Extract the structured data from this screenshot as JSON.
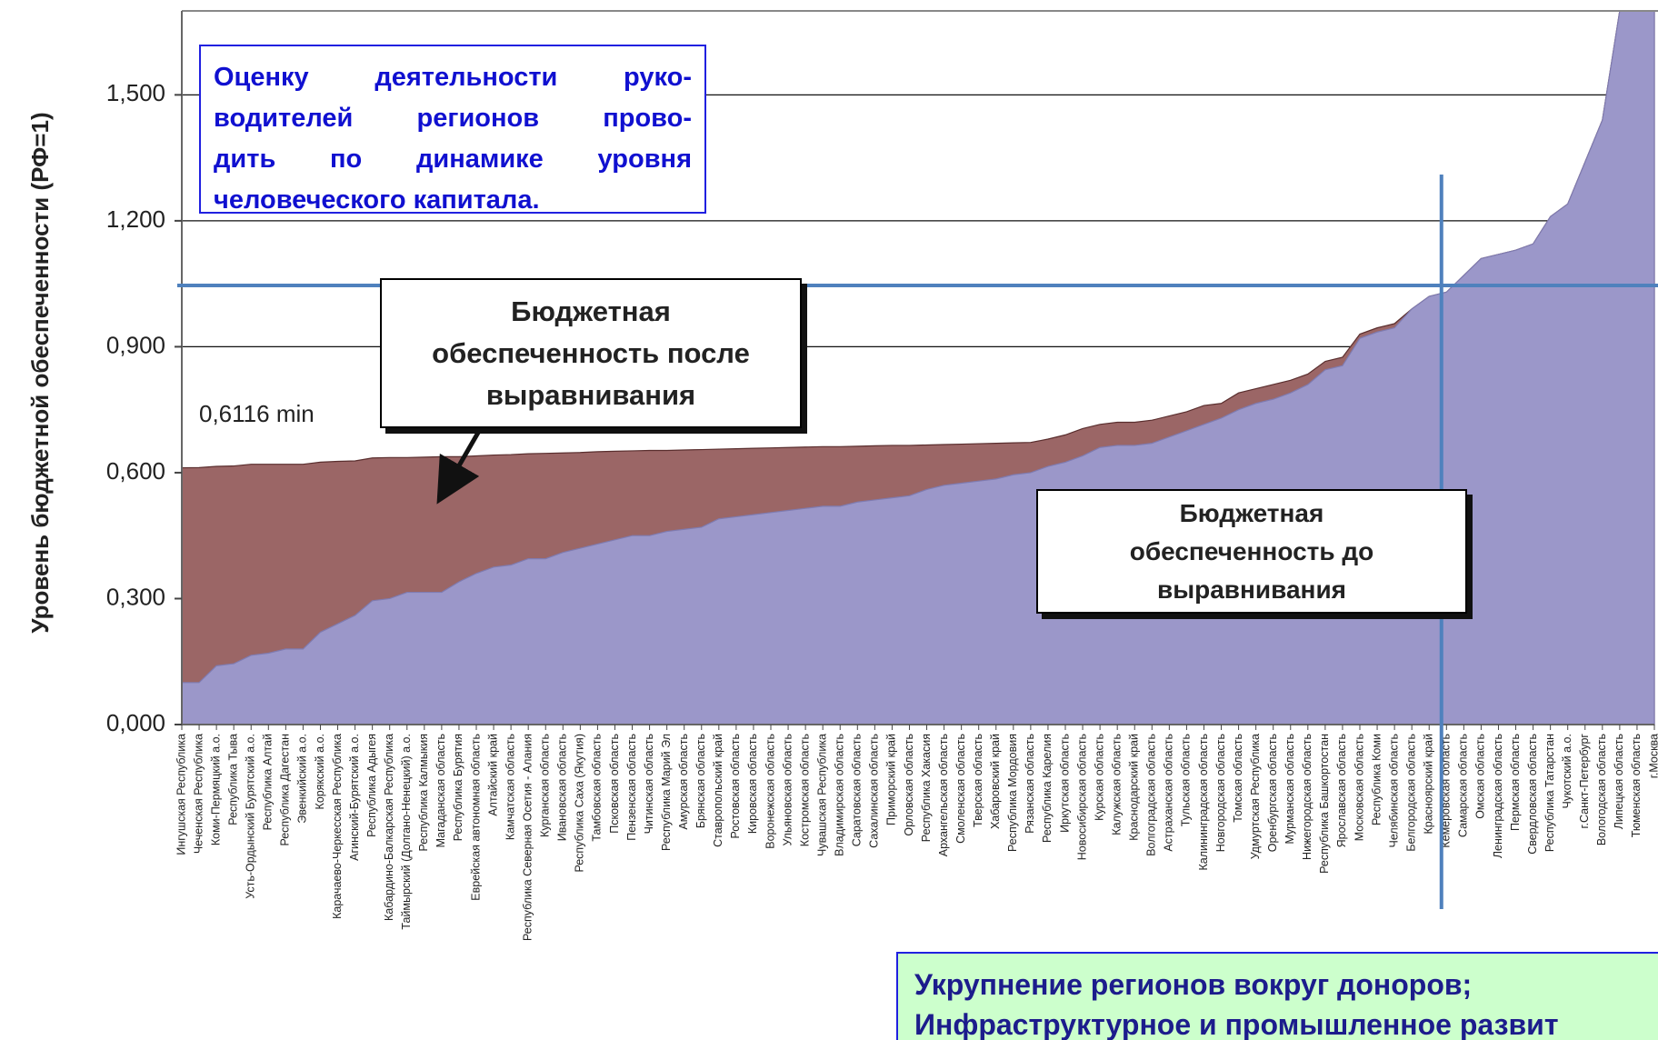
{
  "chart_data": {
    "type": "area",
    "y_label": "Уровень бюджетной обеспеченности (РФ=1)",
    "ylim": [
      0,
      1.7
    ],
    "yticks": [
      {
        "value": 0,
        "label": "0,000"
      },
      {
        "value": 0.3,
        "label": "0,300"
      },
      {
        "value": 0.6,
        "label": "0,600"
      },
      {
        "value": 0.9,
        "label": "0,900"
      },
      {
        "value": 1.2,
        "label": "1,200"
      },
      {
        "value": 1.5,
        "label": "1,500"
      }
    ],
    "grid": true,
    "hline": 1.046,
    "vline_category": "Кемеровская область",
    "categories": [
      "Ингушская Республика",
      "Чеченская Республика",
      "Коми-Пермяцкий а.о.",
      "Республика Тыва",
      "Усть-Ордынский Бурятский а.о.",
      "Республика Алтай",
      "Республика Дагестан",
      "Эвенкийский а.о.",
      "Корякский а.о.",
      "Карачаево-Черкесская Республика",
      "Агинский-Бурятский а.о.",
      "Республика Адыгея",
      "Кабардино-Балкарская Республика",
      "Таймырский (Долгано-Ненецкий) а.о.",
      "Республика Калмыкия",
      "Магаданская область",
      "Республика Бурятия",
      "Еврейская автономная область",
      "Алтайский край",
      "Камчатская область",
      "Республика Северная Осетия - Алания",
      "Курганская область",
      "Ивановская область",
      "Республика Саха (Якутия)",
      "Тамбовская область",
      "Псковская область",
      "Пензенская область",
      "Читинская область",
      "Республика Марий Эл",
      "Амурская область",
      "Брянская область",
      "Ставропольский край",
      "Ростовская область",
      "Кировская область",
      "Воронежская область",
      "Ульяновская область",
      "Костромская область",
      "Чувашская Республика",
      "Владимирская область",
      "Саратовская область",
      "Сахалинская область",
      "Приморский край",
      "Орловская область",
      "Республика Хакасия",
      "Архангельская область",
      "Смоленская область",
      "Тверская область",
      "Хабаровский край",
      "Республика Мордовия",
      "Рязанская область",
      "Республика Карелия",
      "Иркутская область",
      "Новосибирская область",
      "Курская область",
      "Калужская область",
      "Краснодарский край",
      "Волгоградская область",
      "Астраханская область",
      "Тульская область",
      "Калининградская область",
      "Новгородская область",
      "Томская область",
      "Удмуртская Республика",
      "Оренбургская область",
      "Мурманская область",
      "Нижегородская область",
      "Республика Башкортостан",
      "Ярославская область",
      "Московская область",
      "Республика Коми",
      "Челябинская область",
      "Белгородская область",
      "Красноярский край",
      "Кемеровская область",
      "Самарская область",
      "Омская область",
      "Ленинградская область",
      "Пермская область",
      "Свердловская область",
      "Республика Татарстан",
      "Чукотский а.о.",
      "г.Санкт-Петербург",
      "Вологодская область",
      "Липецкая область",
      "Тюменская область",
      "г.Москва"
    ],
    "series": [
      {
        "name": "Бюджетная обеспеченность после выравнивания",
        "color": "#9b6666",
        "values": [
          0.6116,
          0.612,
          0.615,
          0.616,
          0.62,
          0.62,
          0.62,
          0.62,
          0.625,
          0.627,
          0.628,
          0.635,
          0.636,
          0.636,
          0.637,
          0.638,
          0.638,
          0.64,
          0.642,
          0.643,
          0.645,
          0.646,
          0.647,
          0.648,
          0.65,
          0.651,
          0.652,
          0.653,
          0.653,
          0.654,
          0.655,
          0.656,
          0.657,
          0.658,
          0.659,
          0.66,
          0.661,
          0.662,
          0.662,
          0.663,
          0.664,
          0.665,
          0.665,
          0.666,
          0.667,
          0.668,
          0.669,
          0.67,
          0.671,
          0.672,
          0.68,
          0.69,
          0.705,
          0.715,
          0.72,
          0.72,
          0.725,
          0.735,
          0.745,
          0.76,
          0.765,
          0.79,
          0.8,
          0.81,
          0.82,
          0.835,
          0.865,
          0.875,
          0.93,
          0.945,
          0.955,
          0.99,
          1.02,
          1.03,
          1.07,
          1.11,
          1.12,
          1.13,
          1.145,
          1.21,
          1.24,
          1.34,
          1.44,
          1.7,
          1.75,
          1.8
        ]
      },
      {
        "name": "Бюджетная обеспеченность до выравнивания",
        "color": "#9b97c9",
        "values": [
          0.1,
          0.1,
          0.14,
          0.145,
          0.165,
          0.17,
          0.18,
          0.18,
          0.22,
          0.24,
          0.26,
          0.295,
          0.3,
          0.315,
          0.315,
          0.315,
          0.34,
          0.36,
          0.375,
          0.38,
          0.395,
          0.395,
          0.41,
          0.42,
          0.43,
          0.44,
          0.45,
          0.45,
          0.46,
          0.465,
          0.47,
          0.49,
          0.495,
          0.5,
          0.505,
          0.51,
          0.515,
          0.52,
          0.52,
          0.53,
          0.535,
          0.54,
          0.545,
          0.56,
          0.57,
          0.575,
          0.58,
          0.585,
          0.595,
          0.6,
          0.615,
          0.625,
          0.64,
          0.66,
          0.665,
          0.665,
          0.67,
          0.685,
          0.7,
          0.715,
          0.73,
          0.75,
          0.765,
          0.775,
          0.79,
          0.81,
          0.845,
          0.855,
          0.92,
          0.935,
          0.945,
          0.99,
          1.02,
          1.03,
          1.07,
          1.11,
          1.12,
          1.13,
          1.145,
          1.21,
          1.24,
          1.34,
          1.44,
          1.7,
          1.75,
          1.8
        ]
      }
    ],
    "annotations": {
      "min_label": "0,6116 min",
      "note_top": [
        "Оценку деятельности руко-",
        "водителей регионов прово-",
        "дить по динамике уровня",
        "человеческого капитала."
      ],
      "note_bottom": [
        "Укрупнение регионов вокруг доноров;",
        "Инфраструктурное и промышленное развит"
      ]
    }
  }
}
